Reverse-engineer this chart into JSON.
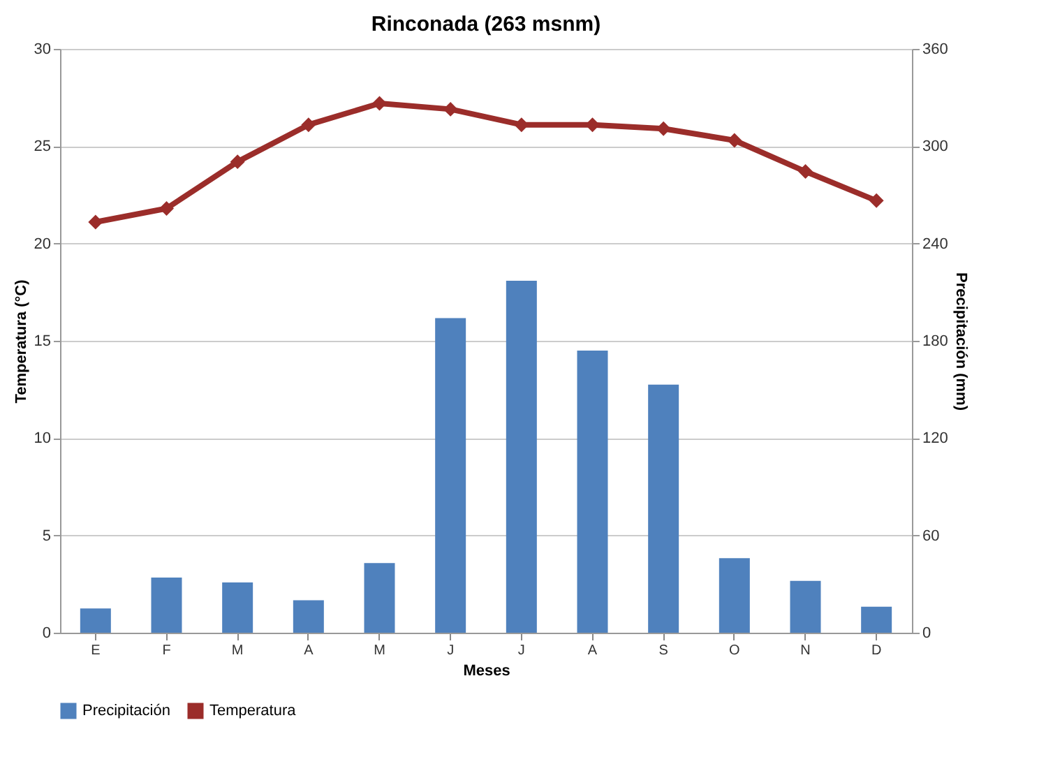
{
  "chart_data": {
    "type": "bar",
    "title": "Rinconada (263 msnm)",
    "xlabel": "Meses",
    "ylabel": "Temperatura (°C)",
    "y2label": "Precipitación (mm)",
    "categories": [
      "E",
      "F",
      "M",
      "A",
      "M",
      "J",
      "J",
      "A",
      "S",
      "O",
      "N",
      "D"
    ],
    "series": [
      {
        "name": "Precipitación",
        "axis": "y2",
        "color": "#4f81bd",
        "values": [
          15,
          34,
          31,
          20,
          43,
          194,
          217,
          174,
          153,
          46,
          32,
          16
        ]
      },
      {
        "name": "Temperatura",
        "type": "line",
        "axis": "y",
        "color": "#9b2d2a",
        "marker": "diamond",
        "values": [
          21.1,
          21.8,
          24.2,
          26.1,
          27.2,
          26.9,
          26.1,
          26.1,
          25.9,
          25.3,
          23.7,
          22.2
        ]
      }
    ],
    "ylim": [
      0,
      30
    ],
    "yticks": [
      0,
      5,
      10,
      15,
      20,
      25,
      30
    ],
    "y2lim": [
      0,
      360
    ],
    "y2ticks": [
      0,
      60,
      120,
      180,
      240,
      300,
      360
    ],
    "grid": "y",
    "legend": "bottom"
  }
}
